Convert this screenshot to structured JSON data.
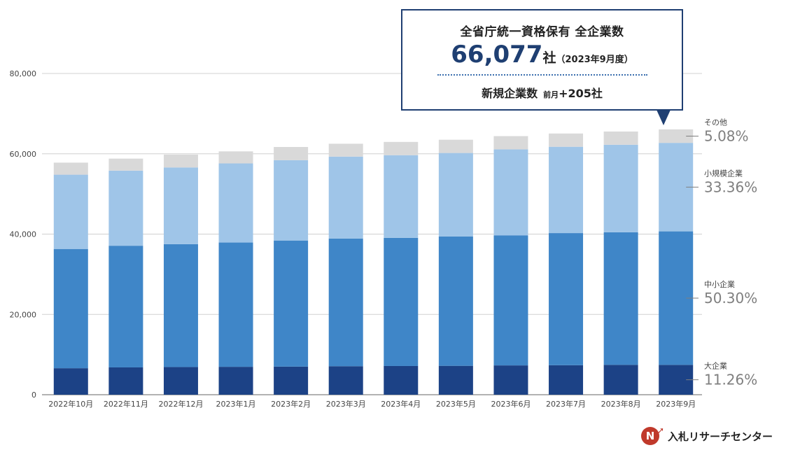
{
  "chart_data": {
    "type": "bar",
    "stacked": true,
    "categories": [
      "2022年10月",
      "2022年11月",
      "2022年12月",
      "2023年1月",
      "2023年2月",
      "2023年3月",
      "2023年4月",
      "2023年5月",
      "2023年6月",
      "2023年7月",
      "2023年8月",
      "2023年9月"
    ],
    "series": [
      {
        "name": "大企業",
        "color": "#1c4286",
        "values": [
          6600,
          6800,
          6900,
          6950,
          7000,
          7100,
          7150,
          7200,
          7300,
          7350,
          7450,
          7440
        ]
      },
      {
        "name": "中小企業",
        "color": "#3f86c8",
        "values": [
          29700,
          30300,
          30600,
          30950,
          31400,
          31800,
          31900,
          32200,
          32400,
          32900,
          33000,
          33240
        ]
      },
      {
        "name": "小規模企業",
        "color": "#9fc5e8",
        "values": [
          18500,
          18700,
          19100,
          19700,
          20000,
          20400,
          20600,
          20800,
          21400,
          21500,
          21800,
          22040
        ]
      },
      {
        "name": "その他",
        "color": "#d9d9d9",
        "values": [
          3000,
          3000,
          3200,
          3000,
          3300,
          3200,
          3300,
          3300,
          3300,
          3300,
          3300,
          3357
        ]
      }
    ],
    "ylim": [
      0,
      80000
    ],
    "yticks": [
      "0",
      "20,000",
      "40,000",
      "60,000",
      "80,000"
    ],
    "ytick_values": [
      0,
      20000,
      40000,
      60000,
      80000
    ],
    "grid": true,
    "segment_labels": [
      {
        "name": "その他",
        "percent": "5.08%"
      },
      {
        "name": "小規模企業",
        "percent": "33.36%"
      },
      {
        "name": "中小企業",
        "percent": "50.30%"
      },
      {
        "name": "大企業",
        "percent": "11.26%"
      }
    ]
  },
  "callout": {
    "title": "全省庁統一資格保有 全企業数",
    "total": "66,077",
    "unit": "社",
    "date": "（2023年9月度）",
    "new_label": "新規企業数",
    "new_prefix": "前月",
    "new_value": "+205社"
  },
  "logo": {
    "mark": "N",
    "text": "入札リサーチセンター",
    "color": "#c0392b"
  }
}
